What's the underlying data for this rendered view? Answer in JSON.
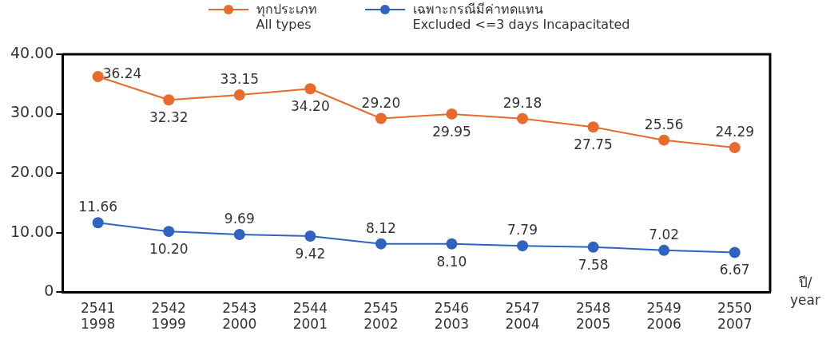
{
  "chart_data": {
    "type": "line",
    "categories": [
      "2541\n1998",
      "2542\n1999",
      "2543\n2000",
      "2544\n2001",
      "2545\n2002",
      "2546\n2003",
      "2547\n2004",
      "2548\n2005",
      "2549\n2006",
      "2550\n2007"
    ],
    "series": [
      {
        "name": "ทุกประเภท\nAll types",
        "color": "#e86a2c",
        "values": [
          36.24,
          32.32,
          33.15,
          34.2,
          29.2,
          29.95,
          29.18,
          27.75,
          25.56,
          24.29
        ],
        "value_labels": [
          "36.24",
          "32.32",
          "33.15",
          "34.20",
          "29.20",
          "29.95",
          "29.18",
          "27.75",
          "25.56",
          "24.29"
        ]
      },
      {
        "name": "เฉพาะกรณีมีค่าทดแทน\nExcluded <=3 days Incapacitated",
        "color": "#2f63c0",
        "values": [
          11.66,
          10.2,
          9.69,
          9.42,
          8.12,
          8.1,
          7.79,
          7.58,
          7.02,
          6.67
        ],
        "value_labels": [
          "11.66",
          "10.20",
          "9.69",
          "9.42",
          "8.12",
          "8.10",
          "7.79",
          "7.58",
          "7.02",
          "6.67"
        ]
      }
    ],
    "xlabel": "ปี/\nyear",
    "ylim": [
      0,
      40
    ],
    "yticks": [
      0,
      {
        "value": 10,
        "label": "10.00"
      },
      {
        "value": 20,
        "label": "20.00"
      },
      {
        "value": 30,
        "label": "30.00"
      },
      {
        "value": 40,
        "label": "40.00"
      }
    ],
    "grid": false,
    "legend": "top",
    "marker": "circle",
    "line_style": "solid"
  }
}
